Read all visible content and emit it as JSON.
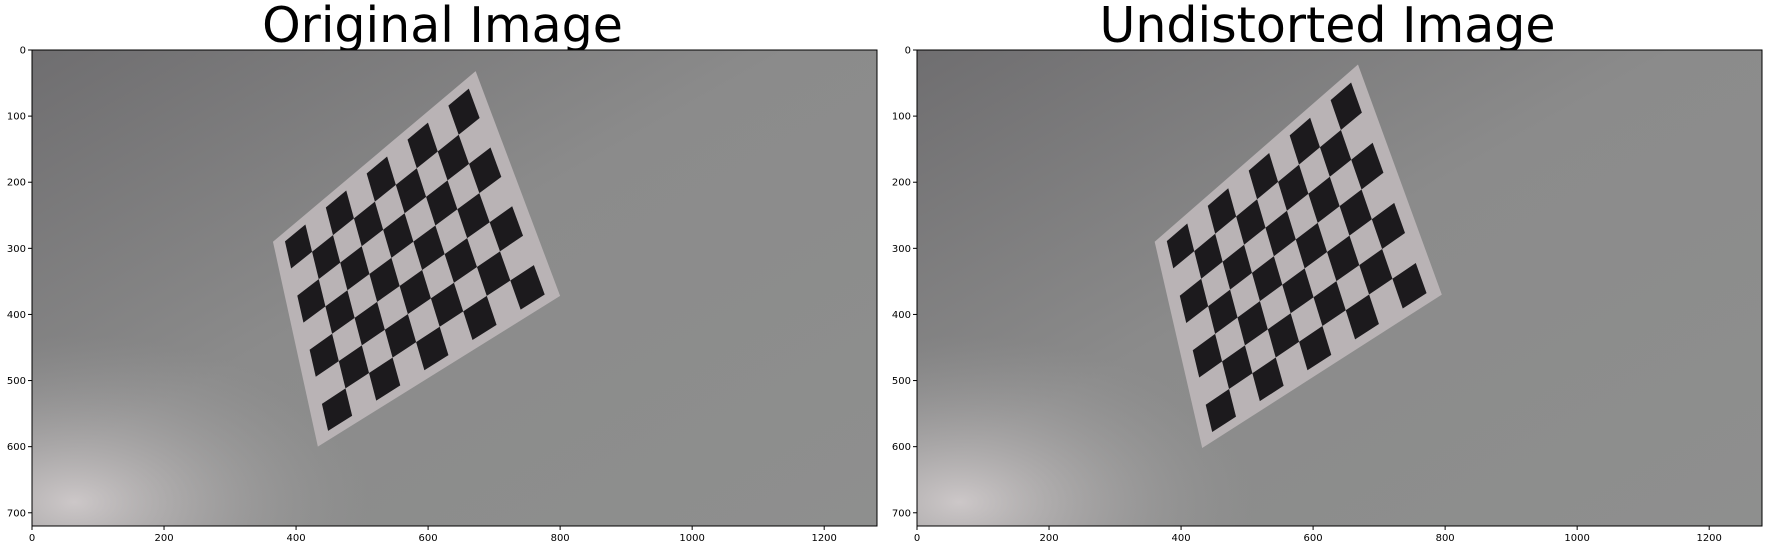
{
  "panels": [
    {
      "title": "Original Image",
      "x_ticks": [
        "0",
        "200",
        "400",
        "600",
        "800",
        "1000",
        "1200"
      ],
      "y_ticks": [
        "0",
        "100",
        "200",
        "300",
        "400",
        "500",
        "600",
        "700"
      ]
    },
    {
      "title": "Undistorted Image",
      "x_ticks": [
        "0",
        "200",
        "400",
        "600",
        "800",
        "1000",
        "1200"
      ],
      "y_ticks": [
        "0",
        "100",
        "200",
        "300",
        "400",
        "500",
        "600",
        "700"
      ]
    }
  ],
  "image": {
    "width": 1280,
    "height": 720,
    "background_color": "#8c8c8c",
    "checkerboard": {
      "cols": 8,
      "rows": 6,
      "dark_color": "#1c1a1d",
      "paper_color": "#b9b3b5"
    }
  }
}
